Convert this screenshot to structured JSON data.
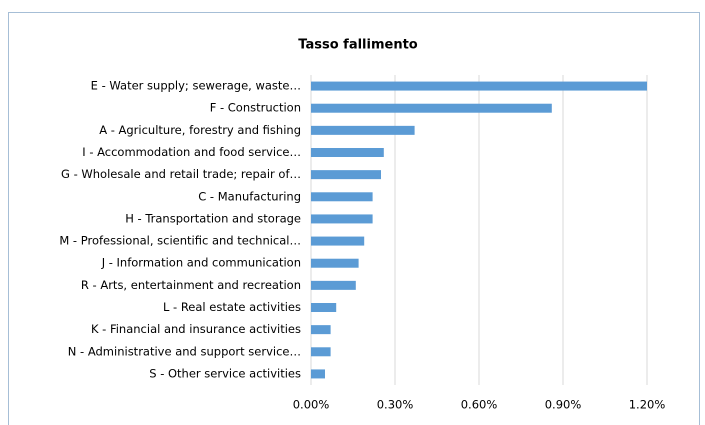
{
  "chart_data": {
    "type": "hbar",
    "title": "Tasso fallimento",
    "categories": [
      "E - Water supply; sewerage, waste…",
      "F - Construction",
      "A - Agriculture, forestry and fishing",
      "I - Accommodation and food service…",
      "G - Wholesale and retail trade; repair of…",
      "C - Manufacturing",
      "H - Transportation and storage",
      "M - Professional, scientific and technical…",
      "J - Information and communication",
      "R - Arts, entertainment and recreation",
      "L - Real estate activities",
      "K - Financial and insurance activities",
      "N - Administrative and support service…",
      "S - Other service activities"
    ],
    "values": [
      1.2,
      0.86,
      0.37,
      0.26,
      0.25,
      0.22,
      0.22,
      0.19,
      0.17,
      0.16,
      0.09,
      0.07,
      0.07,
      0.05
    ],
    "color": "#5b9bd5",
    "xlim": [
      0,
      1.2
    ],
    "xticks": [
      {
        "value": 0,
        "label": "0.00%"
      },
      {
        "value": 0.3,
        "label": "0.30%"
      },
      {
        "value": 0.6,
        "label": "0.60%"
      },
      {
        "value": 0.9,
        "label": "0.90%"
      },
      {
        "value": 1.2,
        "label": "1.20%"
      }
    ],
    "grid": true
  }
}
